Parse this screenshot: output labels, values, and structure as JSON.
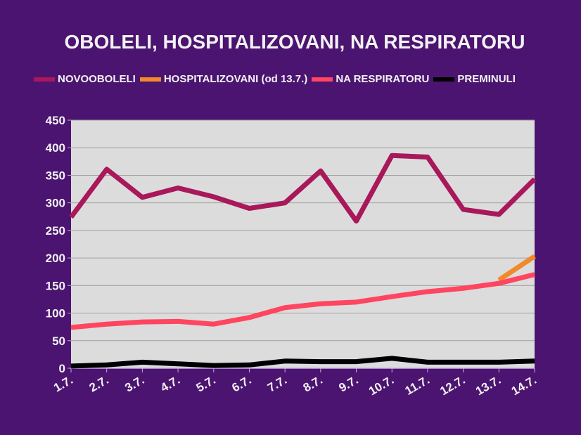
{
  "chart_data": {
    "type": "line",
    "title": "OBOLELI, HOSPITALIZOVANI, NA RESPIRATORU",
    "categories": [
      "1.7.",
      "2.7.",
      "3.7.",
      "4.7.",
      "5.7.",
      "6.7.",
      "7.7.",
      "8.7.",
      "9.7.",
      "10.7.",
      "11.7.",
      "12.7.",
      "13.7.",
      "14.7."
    ],
    "ylim": [
      0,
      450
    ],
    "yticks": [
      0,
      50,
      100,
      150,
      200,
      250,
      300,
      350,
      400,
      450
    ],
    "grid": true,
    "legend": "top",
    "series": [
      {
        "name": "NOVOOBOLELI",
        "color": "#a8185a",
        "values": [
          274,
          361,
          310,
          327,
          311,
          290,
          300,
          358,
          267,
          386,
          383,
          288,
          279,
          343
        ]
      },
      {
        "name": "HOSPITALIZOVANI (od 13.7.)",
        "color": "#f28a2a",
        "values": [
          null,
          null,
          null,
          null,
          null,
          null,
          null,
          null,
          null,
          null,
          null,
          null,
          160,
          203
        ]
      },
      {
        "name": "NA RESPIRATORU",
        "color": "#ff4560",
        "values": [
          74,
          80,
          84,
          85,
          80,
          92,
          110,
          117,
          120,
          130,
          139,
          145,
          154,
          170
        ]
      },
      {
        "name": "PREMINULI",
        "color": "#000000",
        "values": [
          4,
          6,
          11,
          8,
          5,
          6,
          13,
          12,
          12,
          18,
          11,
          11,
          11,
          13
        ]
      }
    ]
  }
}
